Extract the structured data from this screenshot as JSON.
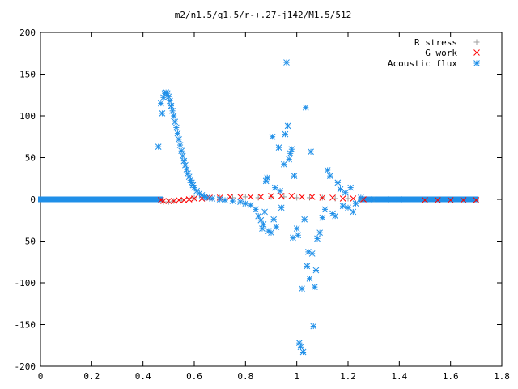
{
  "chart_data": {
    "type": "scatter",
    "title": "m2/n1.5/q1.5/r-+.27-j142/M1.5/512",
    "xlabel": "",
    "ylabel": "",
    "xlim": [
      0,
      1.8
    ],
    "ylim": [
      -200,
      200
    ],
    "x_ticks": [
      0,
      0.2,
      0.4,
      0.6,
      0.8,
      1,
      1.2,
      1.4,
      1.6,
      1.8
    ],
    "x_tick_labels": [
      "0",
      "0.2",
      "0.4",
      "0.6",
      "0.8",
      "1",
      "1.2",
      "1.4",
      "1.6",
      "1.8"
    ],
    "y_ticks": [
      -200,
      -150,
      -100,
      -50,
      0,
      50,
      100,
      150,
      200
    ],
    "y_tick_labels": [
      "-200",
      "-150",
      "-100",
      "-50",
      "0",
      "50",
      "100",
      "150",
      "200"
    ],
    "grid": false,
    "legend_position": "top-right",
    "series": [
      {
        "name": "R stress",
        "marker": "plus",
        "color": "#a0a0a0",
        "points": [
          [
            0.48,
            -3
          ],
          [
            0.5,
            -3
          ],
          [
            0.52,
            -2
          ],
          [
            0.55,
            -1
          ],
          [
            0.58,
            1
          ],
          [
            0.6,
            2
          ],
          [
            0.65,
            2
          ],
          [
            0.7,
            2
          ],
          [
            0.75,
            2
          ],
          [
            0.8,
            3
          ],
          [
            0.85,
            2
          ],
          [
            0.9,
            3
          ],
          [
            0.95,
            3
          ],
          [
            1.0,
            2
          ],
          [
            1.05,
            2
          ],
          [
            1.1,
            2
          ],
          [
            1.15,
            1
          ],
          [
            1.2,
            1
          ],
          [
            1.25,
            0
          ],
          [
            1.3,
            0
          ]
        ]
      },
      {
        "name": "G work",
        "marker": "cross",
        "color": "#ff0000",
        "points": [
          [
            0.47,
            -1
          ],
          [
            0.48,
            -2
          ],
          [
            0.5,
            -2
          ],
          [
            0.52,
            -2
          ],
          [
            0.54,
            -1
          ],
          [
            0.56,
            -1
          ],
          [
            0.58,
            0
          ],
          [
            0.6,
            1
          ],
          [
            0.63,
            1
          ],
          [
            0.66,
            2
          ],
          [
            0.7,
            2
          ],
          [
            0.74,
            3
          ],
          [
            0.78,
            3
          ],
          [
            0.82,
            3
          ],
          [
            0.86,
            3
          ],
          [
            0.9,
            4
          ],
          [
            0.94,
            4
          ],
          [
            0.98,
            4
          ],
          [
            1.02,
            3
          ],
          [
            1.06,
            3
          ],
          [
            1.1,
            2
          ],
          [
            1.14,
            2
          ],
          [
            1.18,
            1
          ],
          [
            1.22,
            1
          ],
          [
            1.26,
            0
          ],
          [
            1.5,
            -1
          ],
          [
            1.55,
            -1
          ],
          [
            1.6,
            -1
          ],
          [
            1.65,
            -1
          ],
          [
            1.7,
            -1
          ]
        ]
      },
      {
        "name": "Acoustic flux",
        "marker": "star",
        "color": "#1f8fe8",
        "points": [
          [
            0.46,
            63
          ],
          [
            0.47,
            115
          ],
          [
            0.475,
            103
          ],
          [
            0.48,
            122
          ],
          [
            0.485,
            127
          ],
          [
            0.49,
            128
          ],
          [
            0.495,
            127
          ],
          [
            0.5,
            123
          ],
          [
            0.505,
            118
          ],
          [
            0.51,
            112
          ],
          [
            0.515,
            106
          ],
          [
            0.52,
            100
          ],
          [
            0.525,
            93
          ],
          [
            0.53,
            86
          ],
          [
            0.535,
            79
          ],
          [
            0.54,
            72
          ],
          [
            0.545,
            65
          ],
          [
            0.55,
            58
          ],
          [
            0.555,
            52
          ],
          [
            0.56,
            46
          ],
          [
            0.565,
            41
          ],
          [
            0.57,
            36
          ],
          [
            0.575,
            31
          ],
          [
            0.58,
            27
          ],
          [
            0.585,
            23
          ],
          [
            0.59,
            20
          ],
          [
            0.595,
            17
          ],
          [
            0.6,
            14
          ],
          [
            0.61,
            10
          ],
          [
            0.62,
            7
          ],
          [
            0.63,
            5
          ],
          [
            0.64,
            3
          ],
          [
            0.65,
            2
          ],
          [
            0.67,
            1
          ],
          [
            0.7,
            0
          ],
          [
            0.72,
            -1
          ],
          [
            0.75,
            -2
          ],
          [
            0.78,
            -3
          ],
          [
            0.8,
            -5
          ],
          [
            0.82,
            -7
          ],
          [
            0.84,
            -12
          ],
          [
            0.85,
            -20
          ],
          [
            0.86,
            -25
          ],
          [
            0.865,
            -35
          ],
          [
            0.87,
            -30
          ],
          [
            0.875,
            -15
          ],
          [
            0.88,
            22
          ],
          [
            0.885,
            26
          ],
          [
            0.89,
            -38
          ],
          [
            0.9,
            -40
          ],
          [
            0.905,
            75
          ],
          [
            0.91,
            -24
          ],
          [
            0.915,
            14
          ],
          [
            0.92,
            -33
          ],
          [
            0.93,
            62
          ],
          [
            0.935,
            10
          ],
          [
            0.94,
            -10
          ],
          [
            0.95,
            42
          ],
          [
            0.955,
            78
          ],
          [
            0.96,
            164
          ],
          [
            0.965,
            88
          ],
          [
            0.97,
            48
          ],
          [
            0.975,
            55
          ],
          [
            0.98,
            60
          ],
          [
            0.985,
            -46
          ],
          [
            0.99,
            28
          ],
          [
            1.0,
            -35
          ],
          [
            1.005,
            -43
          ],
          [
            1.01,
            -172
          ],
          [
            1.015,
            -177
          ],
          [
            1.02,
            -107
          ],
          [
            1.025,
            -183
          ],
          [
            1.03,
            -24
          ],
          [
            1.035,
            110
          ],
          [
            1.04,
            -80
          ],
          [
            1.045,
            -63
          ],
          [
            1.05,
            -95
          ],
          [
            1.055,
            57
          ],
          [
            1.06,
            -65
          ],
          [
            1.065,
            -152
          ],
          [
            1.07,
            -105
          ],
          [
            1.075,
            -85
          ],
          [
            1.08,
            -47
          ],
          [
            1.09,
            -40
          ],
          [
            1.1,
            -22
          ],
          [
            1.11,
            -12
          ],
          [
            1.12,
            35
          ],
          [
            1.13,
            28
          ],
          [
            1.14,
            -17
          ],
          [
            1.15,
            -20
          ],
          [
            1.16,
            20
          ],
          [
            1.17,
            12
          ],
          [
            1.18,
            -8
          ],
          [
            1.19,
            8
          ],
          [
            1.2,
            -10
          ],
          [
            1.21,
            14
          ],
          [
            1.22,
            -15
          ],
          [
            1.23,
            -5
          ],
          [
            1.25,
            2
          ],
          [
            1.3,
            0
          ],
          [
            1.35,
            0
          ],
          [
            1.4,
            0
          ]
        ]
      }
    ],
    "baseline_band": {
      "series": "Acoustic flux",
      "x_ranges": [
        [
          0,
          0.47
        ],
        [
          1.25,
          1.7
        ]
      ],
      "y": 0
    }
  }
}
